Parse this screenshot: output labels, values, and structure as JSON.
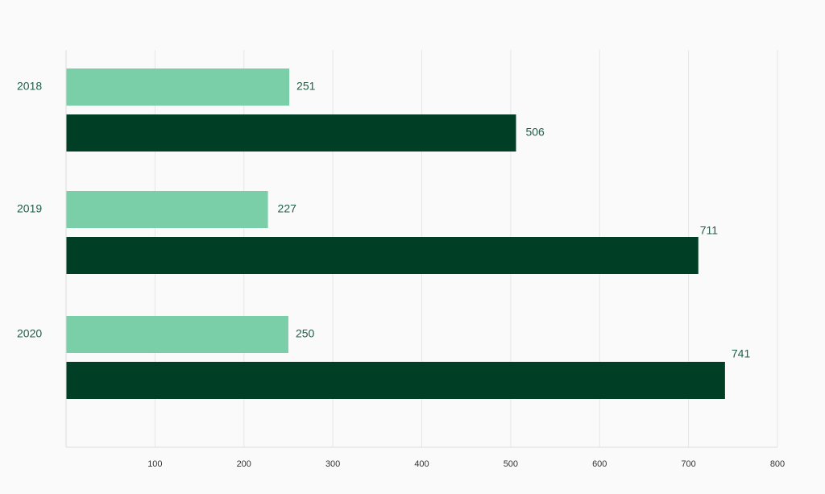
{
  "chart_data": {
    "type": "bar",
    "orientation": "horizontal",
    "categories": [
      "2018",
      "2019",
      "2020"
    ],
    "series": [
      {
        "color": "#7acfa8",
        "values": [
          251,
          227,
          250
        ]
      },
      {
        "color": "#003f25",
        "values": [
          506,
          711,
          741
        ]
      }
    ],
    "xlim": [
      0,
      800
    ],
    "xticks": [
      100,
      200,
      300,
      400,
      500,
      600,
      700,
      800
    ],
    "grid": "vertical",
    "title": "",
    "xlabel": "",
    "ylabel": ""
  }
}
